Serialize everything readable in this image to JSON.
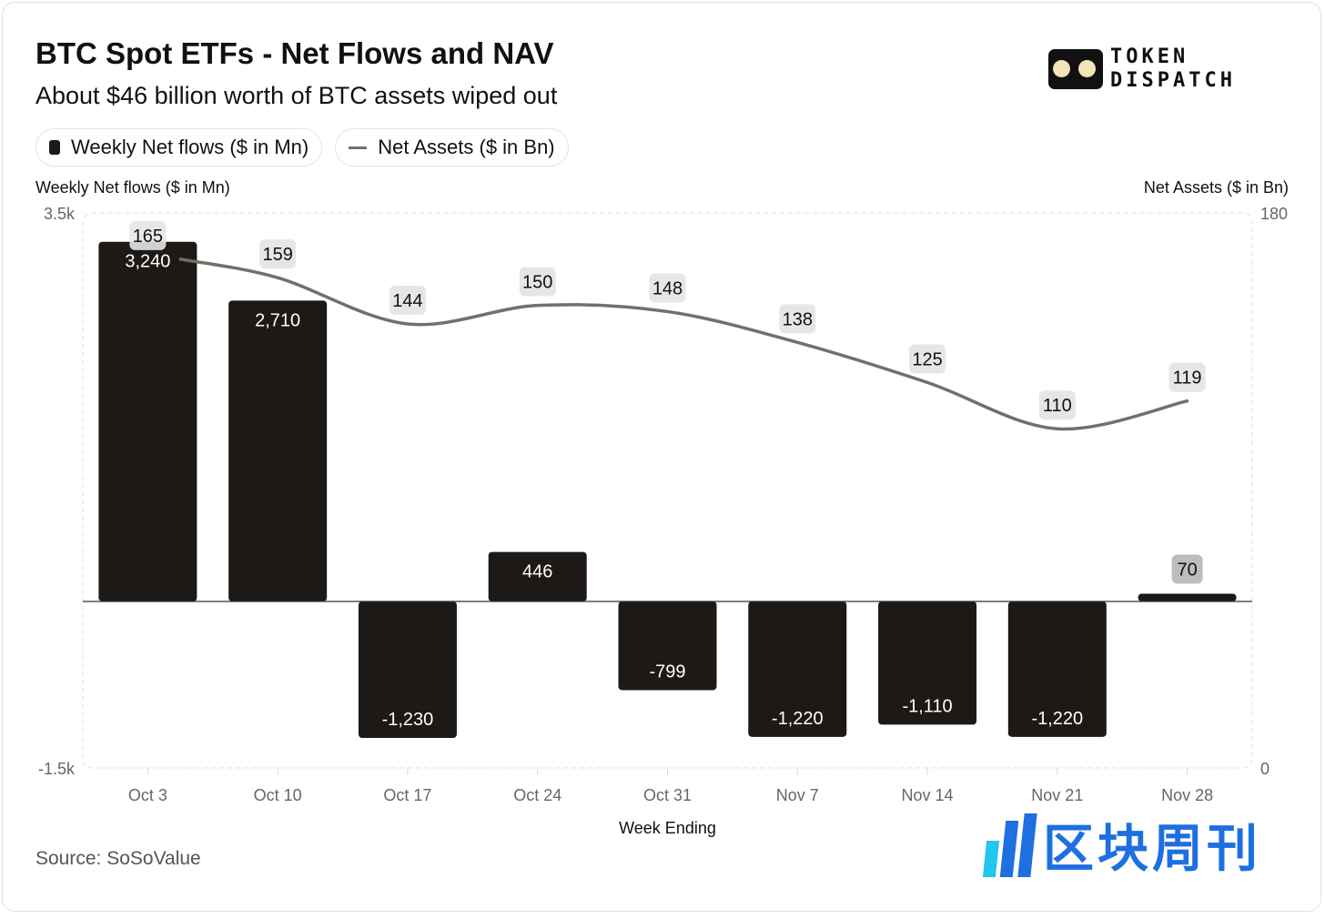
{
  "title": "BTC Spot ETFs - Net Flows and NAV",
  "subtitle": "About $46 billion worth of BTC assets wiped out",
  "legend": [
    "Weekly Net flows ($ in Mn)",
    "Net Assets ($ in Bn)"
  ],
  "logo": "TOKEN DISPATCH",
  "watermark": "区块周刊",
  "source": "Source: SoSoValue",
  "colors": {
    "bar": "#1c1917",
    "line": "#756e69",
    "label_bg": "#e6e6e6"
  },
  "chart_data": {
    "type": "bar+line",
    "xlabel": "Week Ending",
    "ylabel_left": "Weekly Net flows ($ in Mn)",
    "ylabel_right": "Net Assets ($ in Bn)",
    "categories": [
      "Oct 3",
      "Oct 10",
      "Oct 17",
      "Oct 24",
      "Oct 31",
      "Nov 7",
      "Nov 14",
      "Nov 21",
      "Nov 28"
    ],
    "series": [
      {
        "name": "Weekly Net flows ($ in Mn)",
        "type": "bar",
        "axis": "left",
        "values": [
          3240,
          2710,
          -1230,
          446,
          -799,
          -1220,
          -1110,
          -1220,
          70
        ],
        "labels": [
          "3,240",
          "2,710",
          "-1,230",
          "446",
          "-799",
          "-1,220",
          "-1,110",
          "-1,220",
          "70"
        ]
      },
      {
        "name": "Net Assets ($ in Bn)",
        "type": "line",
        "axis": "right",
        "values": [
          165,
          159,
          144,
          150,
          148,
          138,
          125,
          110,
          119
        ]
      }
    ],
    "ylim_left": [
      -1500,
      3500
    ],
    "ylim_right": [
      0,
      180
    ],
    "left_ticks": [
      "3.5k",
      "-1.5k"
    ],
    "right_ticks": [
      "180",
      "0"
    ],
    "grid": false,
    "legend_position": "top-left"
  }
}
